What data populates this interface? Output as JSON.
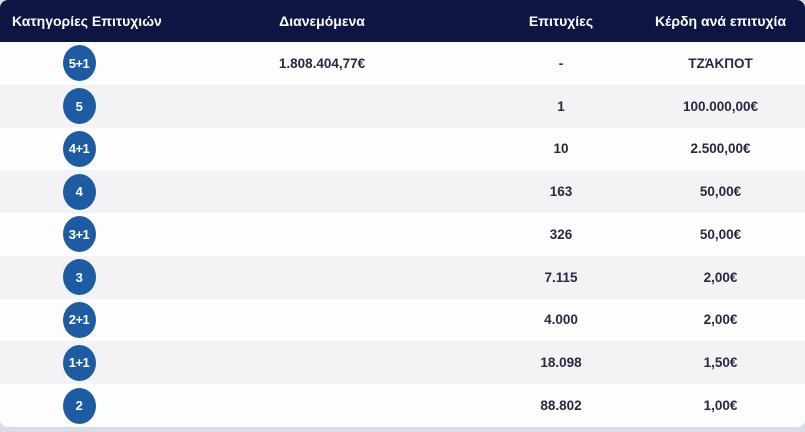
{
  "colors": {
    "header_bg": "#0d1543",
    "header_text": "#ffffff",
    "row_bg": "#fdfdfd",
    "row_alt_bg": "#f3f3f5",
    "page_bg": "#d9dde5",
    "badge_bg": "#1d5ca3",
    "badge_text": "#ffffff",
    "cell_text": "#252a41"
  },
  "table": {
    "headers": [
      {
        "label": "Κατηγορίες Επιτυχιών"
      },
      {
        "label": "Διανεμόμενα"
      },
      {
        "label": "Επιτυχίες"
      },
      {
        "label": "Κέρδη ανά επιτυχία"
      }
    ],
    "rows": [
      {
        "category": "5+1",
        "distributed": "1.808.404,77€",
        "wins": "-",
        "prize": "ΤΖΆΚΠΟΤ"
      },
      {
        "category": "5",
        "distributed": "",
        "wins": "1",
        "prize": "100.000,00€"
      },
      {
        "category": "4+1",
        "distributed": "",
        "wins": "10",
        "prize": "2.500,00€"
      },
      {
        "category": "4",
        "distributed": "",
        "wins": "163",
        "prize": "50,00€"
      },
      {
        "category": "3+1",
        "distributed": "",
        "wins": "326",
        "prize": "50,00€"
      },
      {
        "category": "3",
        "distributed": "",
        "wins": "7.115",
        "prize": "2,00€"
      },
      {
        "category": "2+1",
        "distributed": "",
        "wins": "4.000",
        "prize": "2,00€"
      },
      {
        "category": "1+1",
        "distributed": "",
        "wins": "18.098",
        "prize": "1,50€"
      },
      {
        "category": "2",
        "distributed": "",
        "wins": "88.802",
        "prize": "1,00€"
      }
    ]
  }
}
